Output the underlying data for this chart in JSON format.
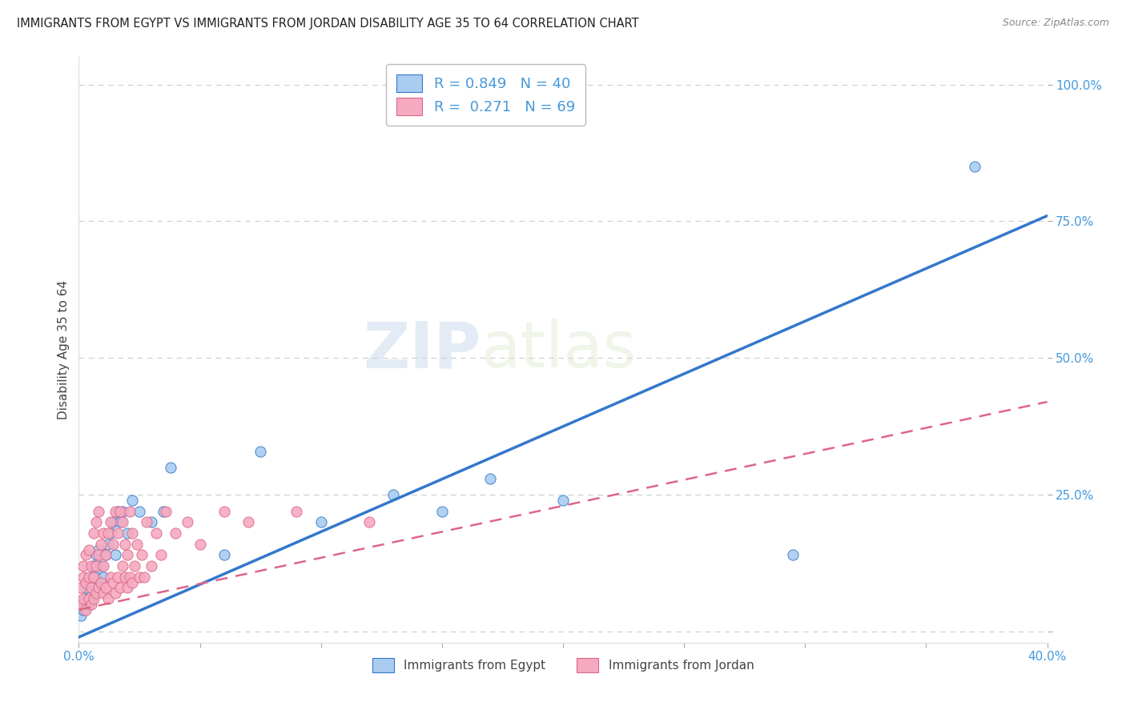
{
  "title": "IMMIGRANTS FROM EGYPT VS IMMIGRANTS FROM JORDAN DISABILITY AGE 35 TO 64 CORRELATION CHART",
  "source": "Source: ZipAtlas.com",
  "ylabel": "Disability Age 35 to 64",
  "xmin": 0.0,
  "xmax": 0.4,
  "ymin": -0.02,
  "ymax": 1.05,
  "egypt_R": 0.849,
  "egypt_N": 40,
  "jordan_R": 0.271,
  "jordan_N": 69,
  "egypt_color": "#aaccf0",
  "jordan_color": "#f5aac0",
  "egypt_line_color": "#3377cc",
  "jordan_line_color": "#dd6688",
  "legend_label_egypt": "Immigrants from Egypt",
  "legend_label_jordan": "Immigrants from Jordan",
  "egypt_x": [
    0.001,
    0.002,
    0.002,
    0.003,
    0.003,
    0.004,
    0.004,
    0.005,
    0.005,
    0.006,
    0.006,
    0.007,
    0.007,
    0.008,
    0.008,
    0.009,
    0.01,
    0.011,
    0.012,
    0.013,
    0.014,
    0.015,
    0.016,
    0.017,
    0.018,
    0.02,
    0.022,
    0.025,
    0.03,
    0.035,
    0.038,
    0.06,
    0.075,
    0.1,
    0.13,
    0.15,
    0.17,
    0.2,
    0.295,
    0.37
  ],
  "egypt_y": [
    0.03,
    0.05,
    0.04,
    0.06,
    0.08,
    0.05,
    0.09,
    0.06,
    0.1,
    0.09,
    0.12,
    0.1,
    0.14,
    0.08,
    0.15,
    0.12,
    0.1,
    0.14,
    0.16,
    0.18,
    0.2,
    0.14,
    0.22,
    0.2,
    0.22,
    0.18,
    0.24,
    0.22,
    0.2,
    0.22,
    0.3,
    0.14,
    0.33,
    0.2,
    0.25,
    0.22,
    0.28,
    0.24,
    0.14,
    0.85
  ],
  "jordan_x": [
    0.001,
    0.001,
    0.002,
    0.002,
    0.002,
    0.003,
    0.003,
    0.003,
    0.004,
    0.004,
    0.004,
    0.005,
    0.005,
    0.005,
    0.006,
    0.006,
    0.006,
    0.007,
    0.007,
    0.007,
    0.008,
    0.008,
    0.008,
    0.009,
    0.009,
    0.01,
    0.01,
    0.01,
    0.011,
    0.011,
    0.012,
    0.012,
    0.013,
    0.013,
    0.014,
    0.014,
    0.015,
    0.015,
    0.016,
    0.016,
    0.017,
    0.017,
    0.018,
    0.018,
    0.019,
    0.019,
    0.02,
    0.02,
    0.021,
    0.021,
    0.022,
    0.022,
    0.023,
    0.024,
    0.025,
    0.026,
    0.027,
    0.028,
    0.03,
    0.032,
    0.034,
    0.036,
    0.04,
    0.045,
    0.05,
    0.06,
    0.07,
    0.09,
    0.12
  ],
  "jordan_y": [
    0.05,
    0.08,
    0.06,
    0.1,
    0.12,
    0.04,
    0.09,
    0.14,
    0.06,
    0.1,
    0.15,
    0.05,
    0.08,
    0.12,
    0.06,
    0.1,
    0.18,
    0.07,
    0.12,
    0.2,
    0.08,
    0.14,
    0.22,
    0.09,
    0.16,
    0.07,
    0.12,
    0.18,
    0.08,
    0.14,
    0.06,
    0.18,
    0.1,
    0.2,
    0.09,
    0.16,
    0.07,
    0.22,
    0.1,
    0.18,
    0.08,
    0.22,
    0.12,
    0.2,
    0.1,
    0.16,
    0.08,
    0.14,
    0.1,
    0.22,
    0.09,
    0.18,
    0.12,
    0.16,
    0.1,
    0.14,
    0.1,
    0.2,
    0.12,
    0.18,
    0.14,
    0.22,
    0.18,
    0.2,
    0.16,
    0.22,
    0.2,
    0.22,
    0.2
  ],
  "egypt_line_x0": 0.0,
  "egypt_line_y0": -0.01,
  "egypt_line_x1": 0.4,
  "egypt_line_y1": 0.76,
  "jordan_line_x0": 0.0,
  "jordan_line_y0": 0.04,
  "jordan_line_x1": 0.4,
  "jordan_line_y1": 0.42,
  "watermark_zip": "ZIP",
  "watermark_atlas": "atlas",
  "background_color": "#ffffff",
  "grid_color": "#cccccc",
  "tick_color_right": "#4499dd",
  "tick_color_bottom": "#4499dd"
}
